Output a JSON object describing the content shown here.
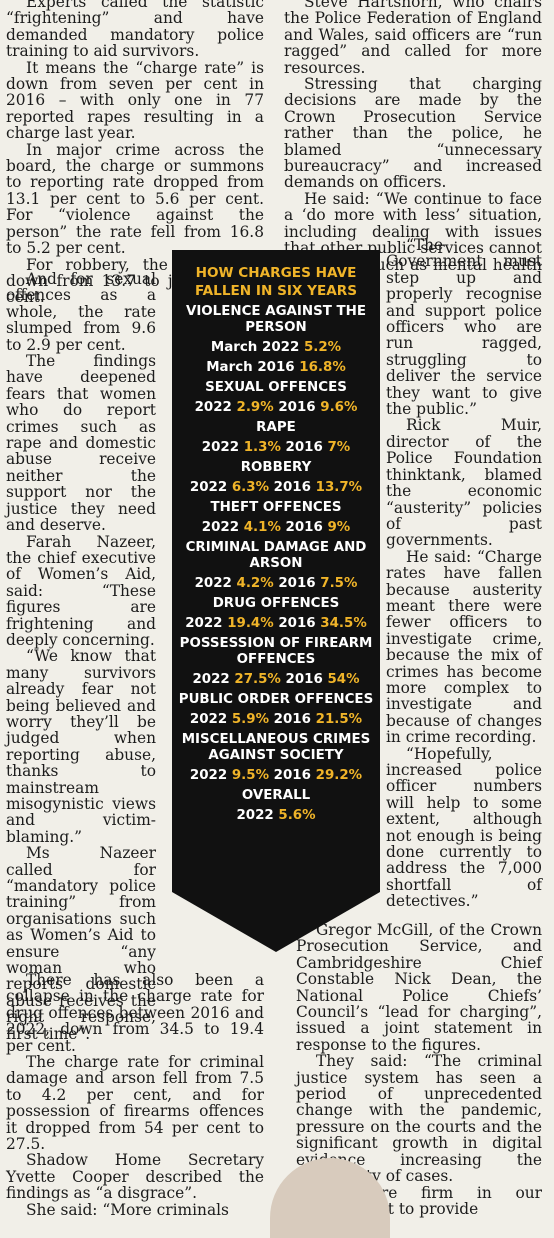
{
  "left_column": [
    "Experts called the statistic “frightening” and have demanded mandatory police training to aid survivors.",
    "It means the “charge rate” is down from seven per cent in 2016 – with only one in 77 reported rapes resulting in a charge last year.",
    "In major crime across the board, the charge or summons to reporting rate dropped from 13.1 per cent to 5.6 per cent. For “violence against the person” the rate fell from 16.8 to 5.2 per cent.",
    "For robbery, the rate went down from 13.7 to just 6.3 per cent."
  ],
  "left_narrow": [
    "And for sexual offences as a whole, the rate slumped from 9.6 to 2.9 per cent.",
    "The findings have deepened fears that women who do report crimes such as rape and domestic abuse receive neither the support nor the justice they need and deserve.",
    "Farah Nazeer, the chief executive of Women’s Aid, said: “These figures are frightening and deeply concerning.",
    "“We know that many survivors already fear not being believed and worry they’ll be judged when reporting abuse, thanks to mainstream misogynistic views and victim-blaming.”",
    "Ms Nazeer called for “mandatory police training” from organisations such as Women’s Aid to ensure “any woman who reports domestic abuse receives the right response, first time”."
  ],
  "left_bottom": [
    "There has also been a collapse in the charge rate for drug offences between 2016 and 2022, down from 34.5 to 19.4 per cent.",
    "The charge rate for criminal damage and arson fell from 7.5 to 4.2 per cent, and for possession of firearms offences it dropped from 54 per cent to 27.5.",
    "Shadow Home Secretary Yvette Cooper described the findings as “a disgrace”.",
    "She said: “More criminals"
  ],
  "right_column": [
    "Steve Hartshorn, who chairs the Police Federation of England and Wales, said officers are “run ragged” and called for more resources.",
    "Stressing that charging decisions are made by the Crown Prosecution Service rather than the police, he blamed “unnecessary bureaucracy” and increased demands on officers.",
    "He said: “We continue to face a ‘do more with less’ situation, including dealing with issues that other public services cannot deal with, such as mental health crises."
  ],
  "right_narrow": [
    "“The Government must step up and properly recognise and support police officers who are run ragged, struggling to deliver the service they want to give the public.”",
    "Rick Muir, director of the Police Foundation thinktank, blamed the economic “austerity” policies of past governments.",
    "He said: “Charge rates have fallen because austerity meant there were fewer officers to investigate crime, because the mix of crimes has become more complex to investigate and because of changes in crime recording.",
    "“Hopefully, increased police officer numbers will help to some extent, although not enough is being done currently to address the 7,000 shortfall of detectives.”"
  ],
  "right_bottom": [
    "Gregor McGill, of the Crown Prosecution Service, and Cambridgeshire Chief Constable Nick Dean, the National Police Chiefs’ Council’s “lead for charging”, issued a joint statement in response to the figures.",
    "They said: “The criminal justice system has seen a period of unprecedented change with the pandemic, pressure on the courts and the significant growth in digital evidence increasing the complexity of cases.",
    "“We are firm in our commitment to provide"
  ],
  "panel": {
    "title": "HOW CHARGES HAVE FALLEN IN SIX YEARS",
    "vap_heading": "VIOLENCE AGAINST THE PERSON",
    "vap_2022_label": "March 2022",
    "vap_2022_value": "5.2%",
    "vap_2016_label": "March 2016",
    "vap_2016_value": "16.8%",
    "categories": [
      {
        "name": "SEXUAL OFFENCES",
        "v2022": "2.9%",
        "v2016": "9.6%"
      },
      {
        "name": "RAPE",
        "v2022": "1.3%",
        "v2016": "7%"
      },
      {
        "name": "ROBBERY",
        "v2022": "6.3%",
        "v2016": "13.7%"
      },
      {
        "name": "THEFT OFFENCES",
        "v2022": "4.1%",
        "v2016": "9%"
      },
      {
        "name": "CRIMINAL DAMAGE AND ARSON",
        "v2022": "4.2%",
        "v2016": "7.5%"
      },
      {
        "name": "DRUG OFFENCES",
        "v2022": "19.4%",
        "v2016": "34.5%"
      },
      {
        "name": "POSSESSION OF FIREARM OFFENCES",
        "v2022": "27.5%",
        "v2016": "54%"
      },
      {
        "name": "PUBLIC ORDER OFFENCES",
        "v2022": "5.9%",
        "v2016": "21.5%"
      },
      {
        "name": "MISCELLANEOUS CRIMES AGAINST SOCIETY",
        "v2022": "9.5%",
        "v2016": "29.2%"
      }
    ],
    "year_2022": "2022",
    "year_2016": "2016",
    "overall_heading": "OVERALL",
    "overall_2022": "5.6%"
  },
  "colors": {
    "panel_bg": "#111111",
    "highlight": "#f0b429",
    "paper": "#f1efe8"
  }
}
